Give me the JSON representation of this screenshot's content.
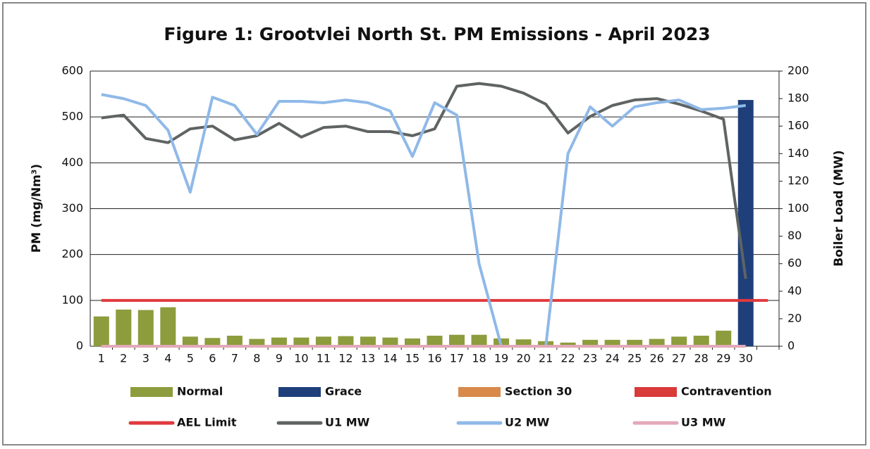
{
  "chart_data": {
    "type": "combo",
    "title": "Figure 1: Grootvlei North St. PM Emissions -  April 2023",
    "y_label": "PM (mg/Nm³)",
    "y2_label": "Boiler Load (MW)",
    "categories": [
      "1",
      "2",
      "3",
      "4",
      "5",
      "6",
      "7",
      "8",
      "9",
      "10",
      "11",
      "12",
      "13",
      "14",
      "15",
      "16",
      "17",
      "18",
      "19",
      "20",
      "21",
      "22",
      "23",
      "24",
      "25",
      "26",
      "27",
      "28",
      "29",
      "30",
      null
    ],
    "ylim": [
      0,
      600
    ],
    "yticks": [
      0,
      100,
      200,
      300,
      400,
      500,
      600
    ],
    "y2lim": [
      0,
      200
    ],
    "y2ticks": [
      0,
      20,
      40,
      60,
      80,
      100,
      120,
      140,
      160,
      180,
      200
    ],
    "grid": true,
    "series": [
      {
        "name": "Normal",
        "type": "bar",
        "color": "#8d9c3c",
        "values": [
          65,
          80,
          79,
          85,
          21,
          18,
          23,
          16,
          19,
          19,
          21,
          22,
          21,
          19,
          17,
          23,
          25,
          25,
          17,
          15,
          11,
          8,
          14,
          14,
          14,
          16,
          21,
          23,
          34,
          null,
          null
        ]
      },
      {
        "name": "Grace",
        "type": "bar",
        "color": "#1f3f7a",
        "values": [
          null,
          null,
          null,
          null,
          null,
          null,
          null,
          null,
          null,
          null,
          null,
          null,
          null,
          null,
          null,
          null,
          null,
          null,
          null,
          null,
          null,
          null,
          null,
          null,
          null,
          null,
          null,
          null,
          null,
          537,
          null
        ]
      },
      {
        "name": "Section 30",
        "type": "bar",
        "color": "#d9894a",
        "values": [
          0,
          0,
          0,
          0,
          0,
          0,
          0,
          0,
          0,
          0,
          0,
          0,
          0,
          0,
          0,
          0,
          0,
          0,
          0,
          0,
          0,
          0,
          0,
          0,
          0,
          0,
          0,
          0,
          0,
          0,
          null
        ]
      },
      {
        "name": "Contravention",
        "type": "bar",
        "color": "#d93a3a",
        "values": [
          0,
          0,
          0,
          0,
          0,
          0,
          0,
          0,
          0,
          0,
          0,
          0,
          0,
          0,
          0,
          0,
          0,
          0,
          0,
          0,
          0,
          0,
          0,
          0,
          0,
          0,
          0,
          0,
          0,
          0,
          null
        ]
      },
      {
        "name": "AEL Limit",
        "type": "line",
        "color": "#e0393e",
        "values": [
          100,
          100,
          100,
          100,
          100,
          100,
          100,
          100,
          100,
          100,
          100,
          100,
          100,
          100,
          100,
          100,
          100,
          100,
          100,
          100,
          100,
          100,
          100,
          100,
          100,
          100,
          100,
          100,
          100,
          100,
          100
        ]
      },
      {
        "name": "U1 MW",
        "type": "line",
        "axis": "y2",
        "color": "#5f6463",
        "values": [
          166,
          168,
          151,
          148,
          158,
          160,
          150,
          153,
          162,
          152,
          159,
          160,
          156,
          156,
          153,
          158,
          189,
          191,
          189,
          184,
          176,
          155,
          167,
          175,
          179,
          180,
          176,
          171,
          165,
          49,
          null
        ]
      },
      {
        "name": "U2 MW",
        "type": "line",
        "axis": "y2",
        "color": "#8fb9e8",
        "values": [
          183,
          180,
          175,
          157,
          112,
          181,
          175,
          154,
          178,
          178,
          177,
          179,
          177,
          171,
          138,
          177,
          168,
          60,
          0,
          0,
          0,
          140,
          174,
          160,
          174,
          177,
          179,
          172,
          173,
          175,
          null
        ]
      },
      {
        "name": "U3 MW",
        "type": "line",
        "axis": "y2",
        "color": "#e3a9b8",
        "values": [
          0,
          0,
          0,
          0,
          0,
          0,
          0,
          0,
          0,
          0,
          0,
          0,
          0,
          0,
          0,
          0,
          0,
          0,
          0,
          0,
          0,
          0,
          0,
          0,
          0,
          0,
          0,
          0,
          0,
          0,
          null
        ]
      }
    ]
  }
}
